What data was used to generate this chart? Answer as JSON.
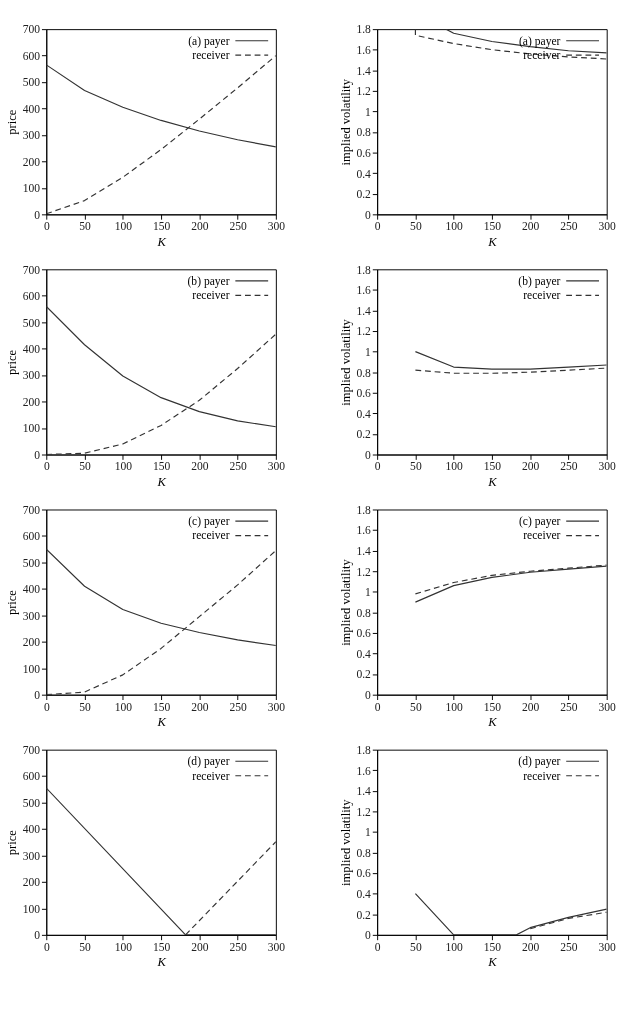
{
  "chart_data": [
    {
      "type": "line",
      "xlabel": "K",
      "ylabel": "price",
      "xlim": [
        0,
        300
      ],
      "xticks": [
        0,
        50,
        100,
        150,
        200,
        250,
        300
      ],
      "ylim": [
        0,
        700
      ],
      "yticks": [
        0,
        100,
        200,
        300,
        400,
        500,
        600,
        700
      ],
      "legend": "top right",
      "series": [
        {
          "name": "(a) payer",
          "color": "#333333",
          "line_style": "solid",
          "x": [
            0,
            50,
            100,
            150,
            200,
            250,
            300
          ],
          "values": [
            565,
            468,
            405,
            355,
            315,
            282,
            255
          ]
        },
        {
          "name": "receiver",
          "color": "#333333",
          "line_style": "dashed",
          "x": [
            0,
            50,
            100,
            150,
            200,
            250,
            300
          ],
          "values": [
            2,
            52,
            140,
            245,
            360,
            478,
            600
          ]
        }
      ]
    },
    {
      "type": "line",
      "xlabel": "K",
      "ylabel": "implied volatility",
      "xlim": [
        0,
        300
      ],
      "xticks": [
        0,
        50,
        100,
        150,
        200,
        250,
        300
      ],
      "ylim": [
        0,
        1.8
      ],
      "yticks": [
        0,
        0.2,
        0.4,
        0.6,
        0.8,
        1,
        1.2,
        1.4,
        1.6,
        1.8
      ],
      "legend": "top right",
      "series": [
        {
          "name": "(a) payer",
          "color": "#333333",
          "line_style": "solid",
          "x": [
            90,
            100,
            150,
            200,
            250,
            300
          ],
          "values": [
            1.8,
            1.76,
            1.68,
            1.63,
            1.59,
            1.57
          ]
        },
        {
          "name": "receiver",
          "color": "#333333",
          "line_style": "dashed",
          "x": [
            50,
            50,
            100,
            150,
            200,
            250,
            300
          ],
          "values": [
            1.8,
            1.74,
            1.66,
            1.6,
            1.56,
            1.53,
            1.51
          ]
        }
      ]
    },
    {
      "type": "line",
      "xlabel": "K",
      "ylabel": "price",
      "xlim": [
        0,
        300
      ],
      "xticks": [
        0,
        50,
        100,
        150,
        200,
        250,
        300
      ],
      "ylim": [
        0,
        700
      ],
      "yticks": [
        0,
        100,
        200,
        300,
        400,
        500,
        600,
        700
      ],
      "legend": "top right",
      "series": [
        {
          "name": "(b) payer",
          "color": "#333333",
          "line_style": "solid",
          "x": [
            0,
            50,
            100,
            150,
            200,
            250,
            300
          ],
          "values": [
            560,
            415,
            297,
            215,
            162,
            127,
            105
          ]
        },
        {
          "name": "receiver",
          "color": "#333333",
          "line_style": "dashed",
          "x": [
            0,
            50,
            100,
            150,
            200,
            250,
            300
          ],
          "values": [
            0,
            5,
            40,
            110,
            205,
            325,
            455
          ]
        }
      ]
    },
    {
      "type": "line",
      "xlabel": "K",
      "ylabel": "implied volatility",
      "xlim": [
        0,
        300
      ],
      "xticks": [
        0,
        50,
        100,
        150,
        200,
        250,
        300
      ],
      "ylim": [
        0,
        1.8
      ],
      "yticks": [
        0,
        0.2,
        0.4,
        0.6,
        0.8,
        1,
        1.2,
        1.4,
        1.6,
        1.8
      ],
      "legend": "top right",
      "series": [
        {
          "name": "(b) payer",
          "color": "#333333",
          "line_style": "solid",
          "x": [
            50,
            100,
            150,
            200,
            250,
            300
          ],
          "values": [
            1.0,
            0.85,
            0.83,
            0.83,
            0.85,
            0.87
          ]
        },
        {
          "name": "receiver",
          "color": "#333333",
          "line_style": "dashed",
          "x": [
            50,
            100,
            150,
            200,
            250,
            300
          ],
          "values": [
            0.82,
            0.79,
            0.79,
            0.8,
            0.82,
            0.84
          ]
        }
      ]
    },
    {
      "type": "line",
      "xlabel": "K",
      "ylabel": "price",
      "xlim": [
        0,
        300
      ],
      "xticks": [
        0,
        50,
        100,
        150,
        200,
        250,
        300
      ],
      "ylim": [
        0,
        700
      ],
      "yticks": [
        0,
        100,
        200,
        300,
        400,
        500,
        600,
        700
      ],
      "legend": "top right",
      "series": [
        {
          "name": "(c) payer",
          "color": "#333333",
          "line_style": "solid",
          "x": [
            0,
            50,
            100,
            150,
            200,
            250,
            300
          ],
          "values": [
            550,
            410,
            322,
            270,
            235,
            207,
            186
          ]
        },
        {
          "name": "receiver",
          "color": "#333333",
          "line_style": "dashed",
          "x": [
            0,
            50,
            100,
            150,
            200,
            250,
            300
          ],
          "values": [
            0,
            10,
            75,
            175,
            295,
            415,
            545
          ]
        }
      ]
    },
    {
      "type": "line",
      "xlabel": "K",
      "ylabel": "implied volatility",
      "xlim": [
        0,
        300
      ],
      "xticks": [
        0,
        50,
        100,
        150,
        200,
        250,
        300
      ],
      "ylim": [
        0,
        1.8
      ],
      "yticks": [
        0,
        0.2,
        0.4,
        0.6,
        0.8,
        1,
        1.2,
        1.4,
        1.6,
        1.8
      ],
      "legend": "top right",
      "series": [
        {
          "name": "(c) payer",
          "color": "#333333",
          "line_style": "solid",
          "x": [
            50,
            100,
            150,
            200,
            250,
            300
          ],
          "values": [
            0.9,
            1.06,
            1.14,
            1.19,
            1.22,
            1.25
          ]
        },
        {
          "name": "receiver",
          "color": "#333333",
          "line_style": "dashed",
          "x": [
            50,
            100,
            150,
            200,
            250,
            300
          ],
          "values": [
            0.98,
            1.09,
            1.16,
            1.2,
            1.23,
            1.26
          ]
        }
      ]
    },
    {
      "type": "line",
      "xlabel": "K",
      "ylabel": "price",
      "xlim": [
        0,
        300
      ],
      "xticks": [
        0,
        50,
        100,
        150,
        200,
        250,
        300
      ],
      "ylim": [
        0,
        700
      ],
      "yticks": [
        0,
        100,
        200,
        300,
        400,
        500,
        600,
        700
      ],
      "legend": "top right",
      "series": [
        {
          "name": "(d) payer",
          "color": "#333333",
          "line_style": "solid",
          "x": [
            0,
            182,
            300
          ],
          "values": [
            555,
            0,
            0
          ]
        },
        {
          "name": "receiver",
          "color": "#333333",
          "line_style": "dashed",
          "x": [
            182,
            300
          ],
          "values": [
            0,
            352
          ]
        }
      ]
    },
    {
      "type": "line",
      "xlabel": "K",
      "ylabel": "implied volatility",
      "xlim": [
        0,
        300
      ],
      "xticks": [
        0,
        50,
        100,
        150,
        200,
        250,
        300
      ],
      "ylim": [
        0,
        1.8
      ],
      "yticks": [
        0,
        0.2,
        0.4,
        0.6,
        0.8,
        1,
        1.2,
        1.4,
        1.6,
        1.8
      ],
      "legend": "top right",
      "series": [
        {
          "name": "(d) payer",
          "color": "#333333",
          "line_style": "solid",
          "x": [
            50,
            100,
            182,
            200,
            250,
            300
          ],
          "values": [
            0.4,
            0,
            0,
            0.07,
            0.17,
            0.25
          ]
        },
        {
          "name": "receiver",
          "color": "#333333",
          "line_style": "dashed",
          "x": [
            200,
            250,
            300
          ],
          "values": [
            0.06,
            0.16,
            0.22
          ]
        }
      ]
    }
  ]
}
